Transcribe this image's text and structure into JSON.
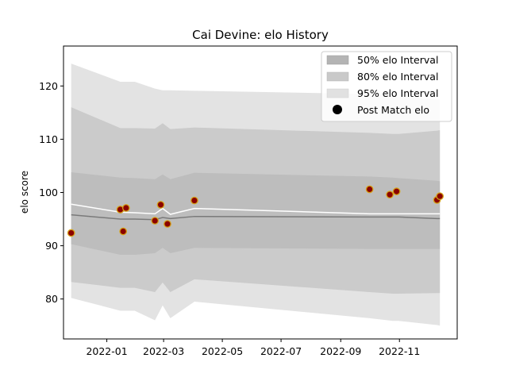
{
  "chart_data": {
    "type": "line",
    "title": "Cai Devine: elo History",
    "xlabel": "",
    "ylabel": "elo score",
    "xlim": [
      "2021-11-17",
      "2022-12-31"
    ],
    "ylim": [
      72.5,
      127.5
    ],
    "x_ticks": [
      "2022-01",
      "2022-03",
      "2022-05",
      "2022-07",
      "2022-09",
      "2022-11"
    ],
    "y_ticks": [
      80,
      90,
      100,
      110,
      120
    ],
    "grid": false,
    "legend_position": "top-right",
    "legend": [
      {
        "label": "50% elo Interval",
        "swatch": "#b4b4b4"
      },
      {
        "label": "80% elo Interval",
        "swatch": "#c9c9c9"
      },
      {
        "label": "95% elo Interval",
        "swatch": "#e1e1e1"
      },
      {
        "label": "Post Match elo",
        "marker": "#000000"
      }
    ],
    "colors": {
      "band_95": "#e3e3e3",
      "band_80": "#cbcbcb",
      "band_50": "#bdbdbd",
      "median_line": "#7a7a7a",
      "mean_line": "#ffffff",
      "point_fill": "#8b0000",
      "point_edge": "#d4a017"
    },
    "bands": {
      "x": [
        "2021-11-25",
        "2022-01-15",
        "2022-01-30",
        "2022-02-20",
        "2022-02-28",
        "2022-03-08",
        "2022-04-02",
        "2022-10-01",
        "2022-10-25",
        "2022-10-31",
        "2022-12-10",
        "2022-12-13"
      ],
      "p95_upper": [
        124.2,
        120.8,
        120.8,
        119.5,
        119.2,
        119.2,
        119.1,
        118.5,
        118.2,
        118.0,
        117.5,
        117.4
      ],
      "p80_upper": [
        116.0,
        112.1,
        112.1,
        112.0,
        113.0,
        111.9,
        112.2,
        111.2,
        111.0,
        111.0,
        111.6,
        111.7
      ],
      "p50_upper": [
        103.8,
        102.8,
        102.7,
        102.5,
        103.4,
        102.5,
        103.7,
        103.0,
        102.8,
        102.7,
        102.2,
        102.1
      ],
      "median": [
        95.8,
        95.0,
        95.0,
        94.9,
        95.3,
        95.1,
        95.5,
        95.4,
        95.4,
        95.4,
        95.1,
        95.1
      ],
      "p50_lower": [
        90.3,
        88.3,
        88.3,
        88.6,
        89.6,
        88.6,
        89.6,
        89.4,
        89.4,
        89.4,
        89.4,
        89.4
      ],
      "p80_lower": [
        83.2,
        82.1,
        82.1,
        81.3,
        83.1,
        81.3,
        83.7,
        81.3,
        81.0,
        81.0,
        81.1,
        81.1
      ],
      "p95_lower": [
        80.2,
        77.8,
        77.8,
        76.0,
        78.8,
        76.4,
        79.5,
        76.4,
        75.9,
        75.9,
        75.1,
        75.0
      ]
    },
    "mean_line": {
      "x": [
        "2021-11-25",
        "2022-01-15",
        "2022-01-30",
        "2022-02-20",
        "2022-02-28",
        "2022-03-08",
        "2022-04-02",
        "2022-10-01",
        "2022-10-25",
        "2022-10-31",
        "2022-12-10",
        "2022-12-13"
      ],
      "y": [
        97.8,
        96.3,
        96.2,
        96.0,
        97.0,
        95.9,
        97.0,
        96.0,
        96.0,
        96.0,
        96.0,
        96.0
      ]
    },
    "series": [
      {
        "name": "Post Match elo",
        "x": [
          "2021-11-25",
          "2022-01-15",
          "2022-01-18",
          "2022-01-21",
          "2022-02-20",
          "2022-02-26",
          "2022-03-05",
          "2022-04-02",
          "2022-10-01",
          "2022-10-22",
          "2022-10-29",
          "2022-12-10",
          "2022-12-13"
        ],
        "y": [
          92.4,
          96.8,
          92.7,
          97.1,
          94.7,
          97.7,
          94.1,
          98.5,
          100.6,
          99.6,
          100.2,
          98.6,
          99.3
        ]
      }
    ]
  }
}
